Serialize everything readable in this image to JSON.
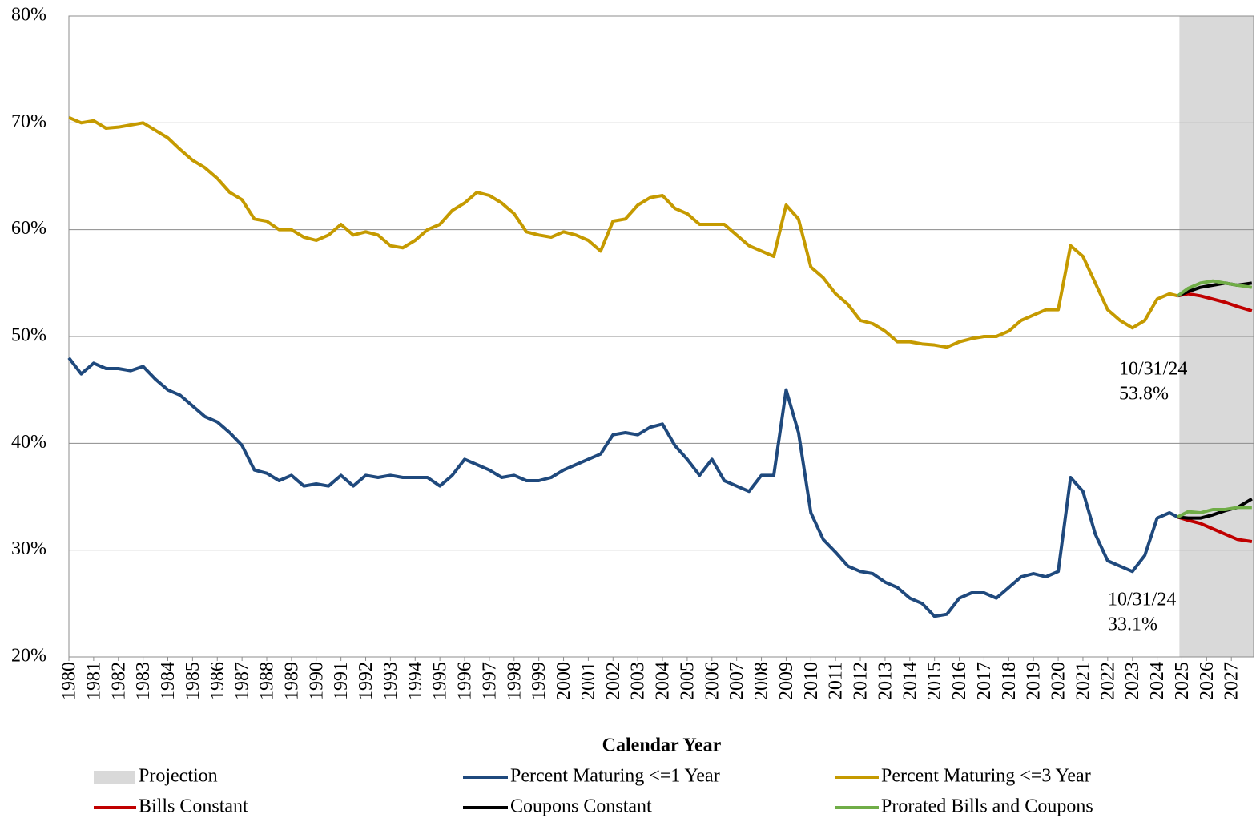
{
  "chart_data": {
    "type": "line",
    "xlabel": "Calendar Year",
    "xlim": [
      1980,
      2027.9
    ],
    "xticks": [
      1980,
      1981,
      1982,
      1983,
      1984,
      1985,
      1986,
      1987,
      1988,
      1989,
      1990,
      1991,
      1992,
      1993,
      1994,
      1995,
      1996,
      1997,
      1998,
      1999,
      2000,
      2001,
      2002,
      2003,
      2004,
      2005,
      2006,
      2007,
      2008,
      2009,
      2010,
      2011,
      2012,
      2013,
      2014,
      2015,
      2016,
      2017,
      2018,
      2019,
      2020,
      2021,
      2022,
      2023,
      2024,
      2025,
      2026,
      2027
    ],
    "ylim": [
      20,
      80
    ],
    "yticks": [
      {
        "value": 20,
        "label": "20%"
      },
      {
        "value": 30,
        "label": "30%"
      },
      {
        "value": 40,
        "label": "40%"
      },
      {
        "value": 50,
        "label": "50%"
      },
      {
        "value": 60,
        "label": "60%"
      },
      {
        "value": 70,
        "label": "70%"
      },
      {
        "value": 80,
        "label": "80%"
      }
    ],
    "grid": true,
    "projection": {
      "name": "Projection",
      "color": "#d9d9d9",
      "range": [
        2024.9,
        2027.9
      ]
    },
    "series": [
      {
        "name": "Percent Maturing <=1 Year",
        "color": "#1f497d",
        "x": [
          1980,
          1980.5,
          1981,
          1981.5,
          1982,
          1982.5,
          1983,
          1983.5,
          1984,
          1984.5,
          1985,
          1985.5,
          1986,
          1986.5,
          1987,
          1987.5,
          1988,
          1988.5,
          1989,
          1989.5,
          1990,
          1990.5,
          1991,
          1991.5,
          1992,
          1992.5,
          1993,
          1993.5,
          1994,
          1994.5,
          1995,
          1995.5,
          1996,
          1996.5,
          1997,
          1997.5,
          1998,
          1998.5,
          1999,
          1999.5,
          2000,
          2000.5,
          2001,
          2001.5,
          2002,
          2002.5,
          2003,
          2003.5,
          2004,
          2004.5,
          2005,
          2005.5,
          2006,
          2006.5,
          2007,
          2007.5,
          2008,
          2008.5,
          2009,
          2009.5,
          2010,
          2010.5,
          2011,
          2011.5,
          2012,
          2012.5,
          2013,
          2013.5,
          2014,
          2014.5,
          2015,
          2015.5,
          2016,
          2016.5,
          2017,
          2017.5,
          2018,
          2018.5,
          2019,
          2019.5,
          2020,
          2020.5,
          2021,
          2021.5,
          2022,
          2022.5,
          2023,
          2023.5,
          2024,
          2024.5,
          2024.83
        ],
        "values": [
          48.0,
          46.5,
          47.5,
          47.0,
          47.0,
          46.8,
          47.2,
          46.0,
          45.0,
          44.5,
          43.5,
          42.5,
          42.0,
          41.0,
          39.8,
          37.5,
          37.2,
          36.5,
          37.0,
          36.0,
          36.2,
          36.0,
          37.0,
          36.0,
          37.0,
          36.8,
          37.0,
          36.8,
          36.8,
          36.8,
          36.0,
          37.0,
          38.5,
          38.0,
          37.5,
          36.8,
          37.0,
          36.5,
          36.5,
          36.8,
          37.5,
          38.0,
          38.5,
          39.0,
          40.8,
          41.0,
          40.8,
          41.5,
          41.8,
          39.8,
          38.5,
          37.0,
          38.5,
          36.5,
          36.0,
          35.5,
          37.0,
          37.0,
          45.0,
          41.0,
          33.5,
          31.0,
          29.8,
          28.5,
          28.0,
          27.8,
          27.0,
          26.5,
          25.5,
          25.0,
          23.8,
          24.0,
          25.5,
          26.0,
          26.0,
          25.5,
          26.5,
          27.5,
          27.8,
          27.5,
          28.0,
          36.8,
          35.5,
          31.5,
          29.0,
          28.5,
          28.0,
          29.5,
          33.0,
          33.5,
          33.1
        ]
      },
      {
        "name": "Percent Maturing <=3 Year",
        "color": "#c59a00",
        "x": [
          1980,
          1980.5,
          1981,
          1981.5,
          1982,
          1982.5,
          1983,
          1983.5,
          1984,
          1984.5,
          1985,
          1985.5,
          1986,
          1986.5,
          1987,
          1987.5,
          1988,
          1988.5,
          1989,
          1989.5,
          1990,
          1990.5,
          1991,
          1991.5,
          1992,
          1992.5,
          1993,
          1993.5,
          1994,
          1994.5,
          1995,
          1995.5,
          1996,
          1996.5,
          1997,
          1997.5,
          1998,
          1998.5,
          1999,
          1999.5,
          2000,
          2000.5,
          2001,
          2001.5,
          2002,
          2002.5,
          2003,
          2003.5,
          2004,
          2004.5,
          2005,
          2005.5,
          2006,
          2006.5,
          2007,
          2007.5,
          2008,
          2008.5,
          2009,
          2009.5,
          2010,
          2010.5,
          2011,
          2011.5,
          2012,
          2012.5,
          2013,
          2013.5,
          2014,
          2014.5,
          2015,
          2015.5,
          2016,
          2016.5,
          2017,
          2017.5,
          2018,
          2018.5,
          2019,
          2019.5,
          2020,
          2020.5,
          2021,
          2021.5,
          2022,
          2022.5,
          2023,
          2023.5,
          2024,
          2024.5,
          2024.83
        ],
        "values": [
          70.5,
          70.0,
          70.2,
          69.5,
          69.6,
          69.8,
          70.0,
          69.3,
          68.6,
          67.5,
          66.5,
          65.8,
          64.8,
          63.5,
          62.8,
          61.0,
          60.8,
          60.0,
          60.0,
          59.3,
          59.0,
          59.5,
          60.5,
          59.5,
          59.8,
          59.5,
          58.5,
          58.3,
          59.0,
          60.0,
          60.5,
          61.8,
          62.5,
          63.5,
          63.2,
          62.5,
          61.5,
          59.8,
          59.5,
          59.3,
          59.8,
          59.5,
          59.0,
          58.0,
          60.8,
          61.0,
          62.3,
          63.0,
          63.2,
          62.0,
          61.5,
          60.5,
          60.5,
          60.5,
          59.5,
          58.5,
          58.0,
          57.5,
          62.3,
          61.0,
          56.5,
          55.5,
          54.0,
          53.0,
          51.5,
          51.2,
          50.5,
          49.5,
          49.5,
          49.3,
          49.2,
          49.0,
          49.5,
          49.8,
          50.0,
          50.0,
          50.5,
          51.5,
          52.0,
          52.5,
          52.5,
          58.5,
          57.5,
          55.0,
          52.5,
          51.5,
          50.8,
          51.5,
          53.5,
          54.0,
          53.8
        ]
      },
      {
        "name": "Bills Constant",
        "color": "#c00000",
        "x": [
          2024.83,
          2025.25,
          2025.75,
          2026.25,
          2026.75,
          2027.25,
          2027.83
        ],
        "values_short": [
          33.1,
          32.8,
          32.5,
          32.0,
          31.5,
          31.0,
          30.8
        ],
        "values_long": [
          53.8,
          54.0,
          53.8,
          53.5,
          53.2,
          52.8,
          52.4
        ]
      },
      {
        "name": "Coupons Constant",
        "color": "#000000",
        "x": [
          2024.83,
          2025.25,
          2025.75,
          2026.25,
          2026.75,
          2027.25,
          2027.83
        ],
        "values_short": [
          33.1,
          33.0,
          33.0,
          33.3,
          33.7,
          34.0,
          34.8
        ],
        "values_long": [
          53.8,
          54.2,
          54.6,
          54.8,
          55.0,
          54.8,
          55.0
        ]
      },
      {
        "name": "Prorated Bills and Coupons",
        "color": "#70ad47",
        "x": [
          2024.83,
          2025.25,
          2025.75,
          2026.25,
          2026.75,
          2027.25,
          2027.83
        ],
        "values_short": [
          33.1,
          33.6,
          33.5,
          33.8,
          33.8,
          34.0,
          34.0
        ],
        "values_long": [
          53.8,
          54.5,
          55.0,
          55.2,
          55.0,
          54.8,
          54.6
        ]
      }
    ],
    "annotations": [
      [
        "10/31/24",
        "53.8%"
      ],
      [
        "10/31/24",
        "33.1%"
      ]
    ]
  }
}
